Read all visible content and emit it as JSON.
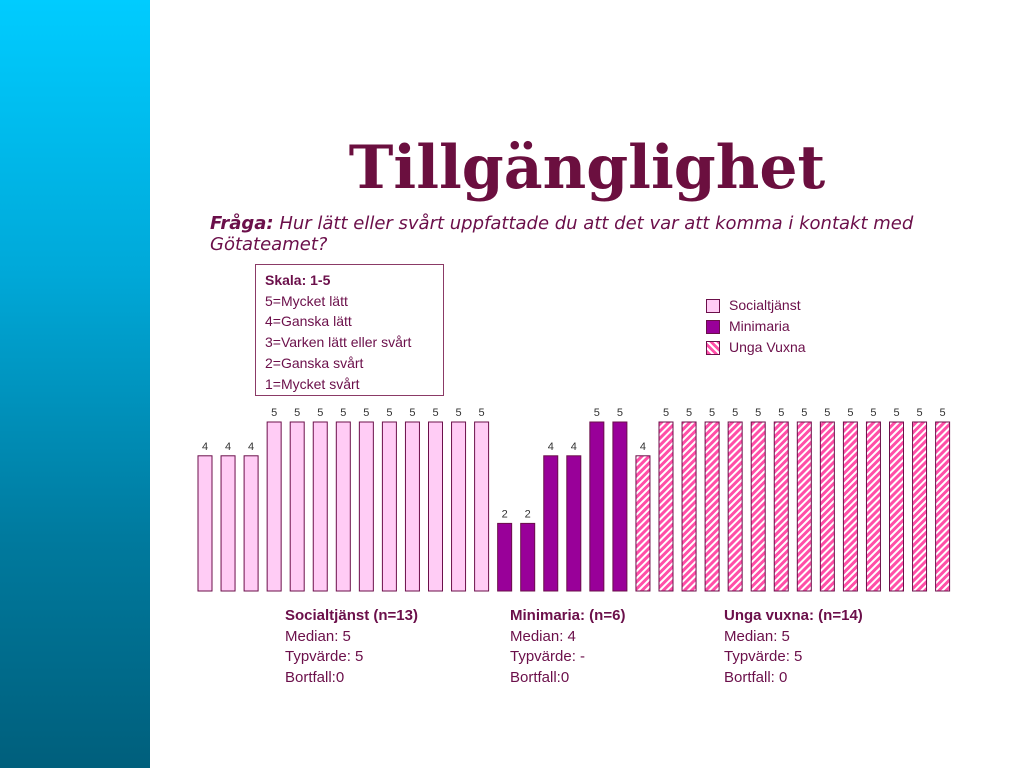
{
  "title": "Tillgänglighet",
  "question": {
    "label": "Fråga:",
    "text": "Hur lätt eller svårt uppfattade du att det var att komma i kontakt med Götateamet?"
  },
  "scale_box": {
    "title": "Skala: 1-5",
    "items": [
      "5=Mycket lätt",
      "4=Ganska lätt",
      "3=Varken lätt eller svårt",
      "2=Ganska svårt",
      "1=Mycket svårt"
    ]
  },
  "legend": [
    "Socialtjänst",
    "Minimaria",
    "Unga Vuxna"
  ],
  "stats": [
    {
      "heading": "Socialtjänst (n=13)",
      "median": "Median: 5",
      "typvarde": "Typvärde: 5",
      "bortfall": "Bortfall:0"
    },
    {
      "heading": "Minimaria: (n=6)",
      "median": "Median: 4",
      "typvarde": "Typvärde: -",
      "bortfall": "Bortfall:0"
    },
    {
      "heading": "Unga vuxna: (n=14)",
      "median": "Median: 5",
      "typvarde": "Typvärde: 5",
      "bortfall": "Bortfall: 0"
    }
  ],
  "colors": {
    "socialtjanst_fill": "#ffccf5",
    "minimaria_fill": "#990099",
    "unga_vuxna_stripe": "#ff4fa8",
    "bar_outline": "#6b0f4a",
    "side_strip": "#00b4e6"
  },
  "chart_data": {
    "type": "bar",
    "ylim": [
      0,
      5
    ],
    "grid": false,
    "legend_position": "right",
    "series": [
      {
        "name": "Socialtjänst",
        "values": [
          4,
          4,
          4,
          5,
          5,
          5,
          5,
          5,
          5,
          5,
          5,
          5,
          5
        ]
      },
      {
        "name": "Minimaria",
        "values": [
          2,
          2,
          4,
          4,
          5,
          5
        ]
      },
      {
        "name": "Unga Vuxna",
        "values": [
          4,
          5,
          5,
          5,
          5,
          5,
          5,
          5,
          5,
          5,
          5,
          5,
          5,
          5
        ]
      }
    ]
  }
}
